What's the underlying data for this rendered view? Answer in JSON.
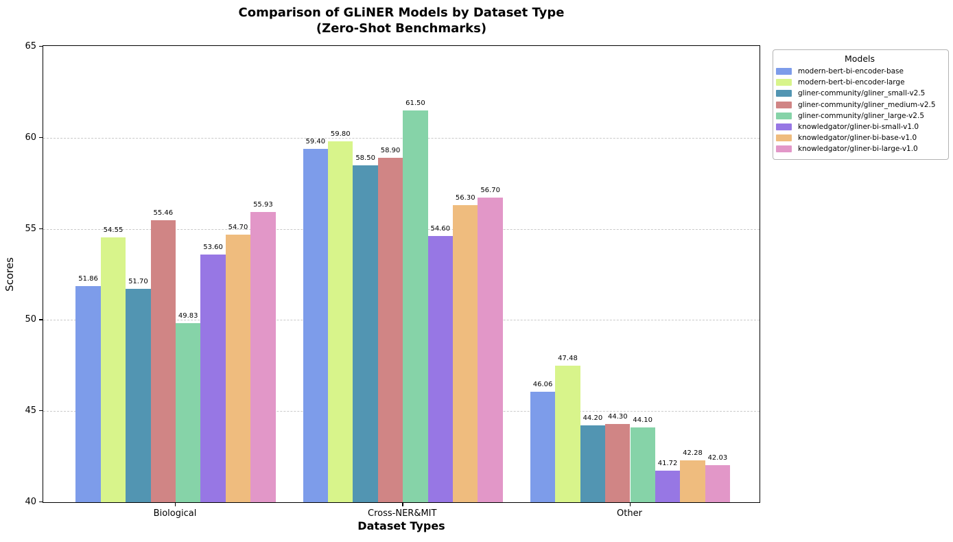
{
  "figure": {
    "title_line1": "Comparison of GLiNER Models by Dataset Type",
    "title_line2": "(Zero-Shot Benchmarks)"
  },
  "chart_data": {
    "type": "bar",
    "title": "Comparison of GLiNER Models by Dataset Type (Zero-Shot Benchmarks)",
    "xlabel": "Dataset Types",
    "ylabel": "Scores",
    "ylim": [
      40,
      65
    ],
    "yticks": [
      40,
      45,
      50,
      55,
      60,
      65
    ],
    "gridlines": [
      45,
      50,
      55,
      60
    ],
    "grid_color": "#c9c9c9",
    "grid_style": "dashed",
    "legend_title": "Models",
    "legend_position": "outside upper right",
    "categories": [
      "Biological",
      "Cross-NER&MIT",
      "Other"
    ],
    "series": [
      {
        "name": "modern-bert-bi-encoder-base",
        "color": "#7d9cea",
        "values": [
          51.86,
          59.4,
          46.06
        ]
      },
      {
        "name": "modern-bert-bi-encoder-large",
        "color": "#d8f48b",
        "values": [
          54.55,
          59.8,
          47.48
        ]
      },
      {
        "name": "gliner-community/gliner_small-v2.5",
        "color": "#5295b2",
        "values": [
          51.7,
          58.5,
          44.2
        ]
      },
      {
        "name": "gliner-community/gliner_medium-v2.5",
        "color": "#d08585",
        "values": [
          55.46,
          58.9,
          44.3
        ]
      },
      {
        "name": "gliner-community/gliner_large-v2.5",
        "color": "#86d3a8",
        "values": [
          49.83,
          61.5,
          44.1
        ]
      },
      {
        "name": "knowledgator/gliner-bi-small-v1.0",
        "color": "#9777e4",
        "values": [
          53.6,
          54.6,
          41.72
        ]
      },
      {
        "name": "knowledgator/gliner-bi-base-v1.0",
        "color": "#efbc7e",
        "values": [
          54.7,
          56.3,
          42.28
        ]
      },
      {
        "name": "knowledgator/gliner-bi-large-v1.0",
        "color": "#e297c8",
        "values": [
          55.93,
          56.7,
          42.03
        ]
      }
    ]
  }
}
